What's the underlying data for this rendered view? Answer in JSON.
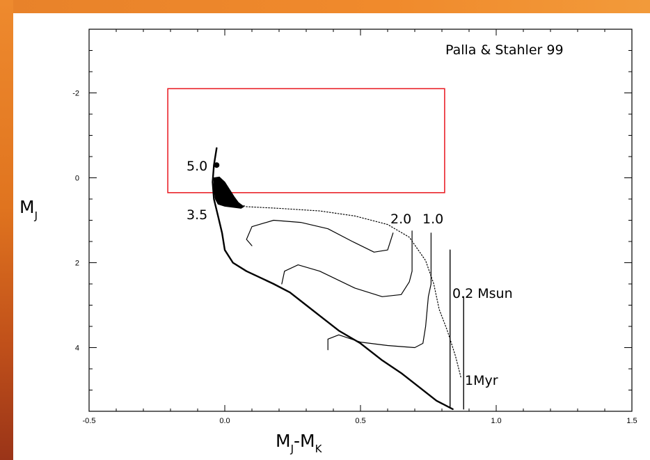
{
  "colors": {
    "frame_orange": "#ee8a2e",
    "frame_dark": "#9a3418",
    "box_red": "#e8141c",
    "label_red": "#e8141c"
  },
  "chart_data": {
    "type": "line",
    "xlabel": {
      "main": "M",
      "sub1": "J",
      "mid": "-M",
      "sub2": "K"
    },
    "ylabel": {
      "main": "M",
      "sub": "J"
    },
    "xlim": [
      -0.5,
      1.5
    ],
    "ylim": [
      5.5,
      -3.5
    ],
    "y_inverted": true,
    "grid": false,
    "x_ticks": [
      -0.5,
      0.0,
      0.5,
      1.0,
      1.5
    ],
    "x_tick_labels": [
      "-0.5",
      "0.0",
      "0.5",
      "1.0",
      "1.5"
    ],
    "y_ticks": [
      -2,
      0,
      2,
      4
    ],
    "y_tick_labels": [
      "-2",
      "0",
      "2",
      "4"
    ],
    "source_label": "Palla & Stahler 99",
    "isochrone_label": "1Myr",
    "mass_labels": [
      "5.0",
      "3.5",
      "2.0",
      "1.0",
      "0.2 Msun"
    ],
    "highlight_box": {
      "x": [
        -0.21,
        0.81
      ],
      "y": [
        -2.1,
        0.35
      ]
    },
    "tracks": [
      {
        "label": "main-sequence",
        "width": 2.4,
        "points": [
          [
            -0.03,
            -0.7
          ],
          [
            -0.04,
            -0.3
          ],
          [
            -0.045,
            0.1
          ],
          [
            -0.04,
            0.5
          ],
          [
            -0.025,
            0.9
          ],
          [
            -0.01,
            1.3
          ],
          [
            0.0,
            1.7
          ],
          [
            0.03,
            2.0
          ],
          [
            0.08,
            2.2
          ],
          [
            0.13,
            2.35
          ],
          [
            0.18,
            2.5
          ],
          [
            0.24,
            2.7
          ],
          [
            0.3,
            3.0
          ],
          [
            0.36,
            3.3
          ],
          [
            0.42,
            3.6
          ],
          [
            0.5,
            3.9
          ],
          [
            0.58,
            4.3
          ],
          [
            0.65,
            4.6
          ],
          [
            0.72,
            4.95
          ],
          [
            0.78,
            5.25
          ],
          [
            0.84,
            5.45
          ]
        ]
      },
      {
        "label": "isochrone-1myr",
        "width": 1.2,
        "dashed": true,
        "points": [
          [
            -0.03,
            0.0
          ],
          [
            -0.01,
            0.35
          ],
          [
            0.02,
            0.55
          ],
          [
            0.08,
            0.68
          ],
          [
            0.2,
            0.72
          ],
          [
            0.35,
            0.78
          ],
          [
            0.48,
            0.9
          ],
          [
            0.6,
            1.1
          ],
          [
            0.68,
            1.4
          ],
          [
            0.74,
            1.95
          ],
          [
            0.77,
            2.5
          ],
          [
            0.79,
            3.1
          ],
          [
            0.82,
            3.6
          ],
          [
            0.85,
            4.2
          ],
          [
            0.87,
            4.7
          ]
        ]
      },
      {
        "label": "track-2.0",
        "width": 1.2,
        "points": [
          [
            0.62,
            1.3
          ],
          [
            0.6,
            1.7
          ],
          [
            0.55,
            1.75
          ],
          [
            0.47,
            1.5
          ],
          [
            0.38,
            1.2
          ],
          [
            0.28,
            1.05
          ],
          [
            0.18,
            1.0
          ],
          [
            0.1,
            1.15
          ],
          [
            0.08,
            1.45
          ],
          [
            0.1,
            1.6
          ]
        ]
      },
      {
        "label": "track-1.0",
        "width": 1.2,
        "points": [
          [
            0.69,
            1.25
          ],
          [
            0.69,
            2.2
          ],
          [
            0.68,
            2.45
          ],
          [
            0.65,
            2.75
          ],
          [
            0.58,
            2.8
          ],
          [
            0.48,
            2.6
          ],
          [
            0.35,
            2.2
          ],
          [
            0.27,
            2.05
          ],
          [
            0.22,
            2.2
          ],
          [
            0.21,
            2.5
          ]
        ]
      },
      {
        "label": "track-0.5",
        "width": 1.2,
        "points": [
          [
            0.76,
            1.3
          ],
          [
            0.76,
            2.5
          ],
          [
            0.75,
            2.8
          ],
          [
            0.74,
            3.5
          ],
          [
            0.73,
            3.9
          ],
          [
            0.7,
            4.0
          ],
          [
            0.6,
            3.95
          ],
          [
            0.5,
            3.87
          ],
          [
            0.42,
            3.7
          ],
          [
            0.38,
            3.8
          ],
          [
            0.38,
            4.05
          ]
        ]
      },
      {
        "label": "track-0.2",
        "width": 1.4,
        "points": [
          [
            0.83,
            1.7
          ],
          [
            0.83,
            5.4
          ]
        ]
      },
      {
        "label": "track-0.1",
        "width": 1.4,
        "points": [
          [
            0.88,
            2.8
          ],
          [
            0.88,
            5.45
          ]
        ]
      }
    ],
    "filled_region": [
      [
        -0.04,
        0.0
      ],
      [
        -0.02,
        -0.02
      ],
      [
        0.0,
        0.1
      ],
      [
        0.02,
        0.3
      ],
      [
        0.035,
        0.45
      ],
      [
        0.05,
        0.58
      ],
      [
        0.07,
        0.68
      ],
      [
        0.06,
        0.72
      ],
      [
        0.0,
        0.67
      ],
      [
        -0.025,
        0.62
      ],
      [
        -0.035,
        0.5
      ],
      [
        -0.04,
        0.25
      ]
    ],
    "marker_point": [
      -0.03,
      -0.3
    ]
  }
}
